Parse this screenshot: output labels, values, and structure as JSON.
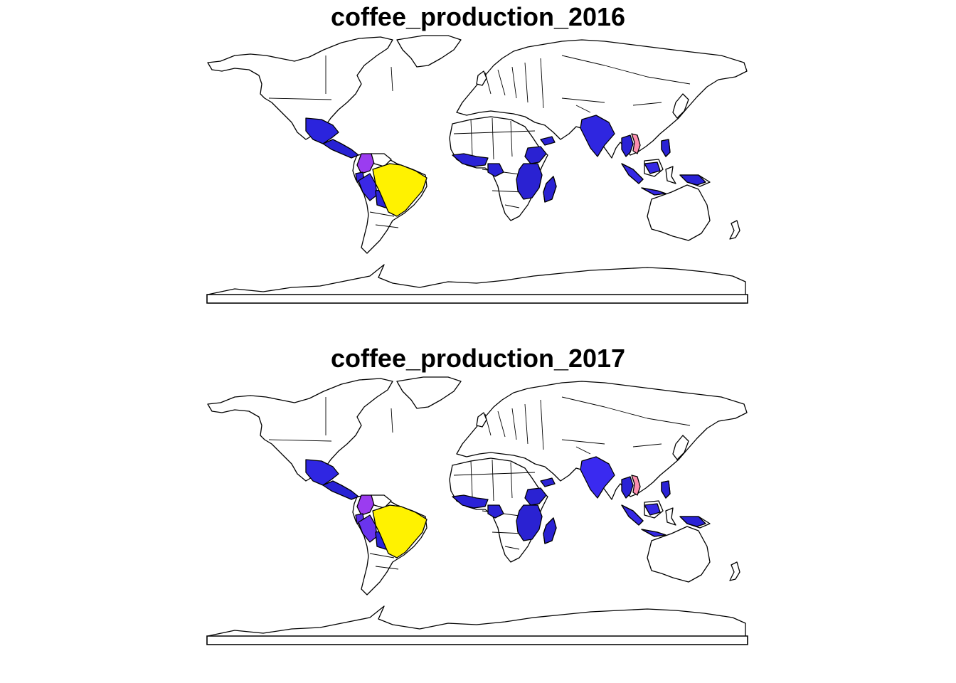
{
  "panels": [
    {
      "title": "coffee_production_2016",
      "fills": {
        "mexico": "#2b24dd",
        "central-america": "#2822d4",
        "colombia": "#9b3cf0",
        "venezuela": "#ffffff",
        "ecuador": "#3322dc",
        "peru": "#3a28e6",
        "bolivia": "#2c24d8",
        "brazil": "#fff200",
        "west-africa": "#2a22d6",
        "central-africa": "#2a22d6",
        "ethiopia": "#2a22d2",
        "east-africa": "#2a22d2",
        "madagascar": "#2a22d2",
        "yemen": "#2a22d6",
        "india": "#2f26e0",
        "laos-thailand": "#2a22d6",
        "vietnam": "#ff8fb0",
        "indonesia": "#3528e4",
        "png": "#2a22d6",
        "philippines": "#2a22d6"
      }
    },
    {
      "title": "coffee_production_2017",
      "fills": {
        "mexico": "#2f26e2",
        "central-america": "#2822d4",
        "colombia": "#9b3cf0",
        "venezuela": "#ffffff",
        "ecuador": "#5a2ee8",
        "peru": "#6a34ee",
        "bolivia": "#2c24d8",
        "brazil": "#fff200",
        "west-africa": "#2a22d6",
        "central-africa": "#2a22d6",
        "ethiopia": "#2a22d2",
        "east-africa": "#2a22d2",
        "madagascar": "#2a22d2",
        "yemen": "#2a22d6",
        "india": "#3a2af0",
        "laos-thailand": "#2a22d6",
        "vietnam": "#ff8fb0",
        "indonesia": "#3528e4",
        "png": "#2a22d6",
        "philippines": "#2a22d6"
      }
    }
  ]
}
